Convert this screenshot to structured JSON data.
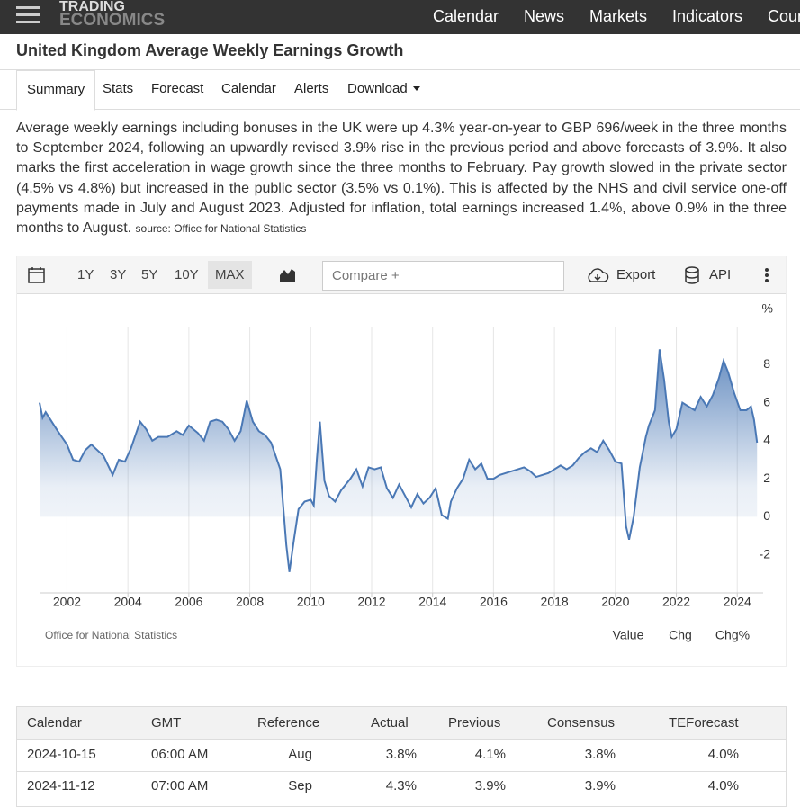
{
  "header": {
    "logo": [
      "TRADING",
      "ECONOMICS"
    ],
    "nav": [
      "Calendar",
      "News",
      "Markets",
      "Indicators",
      "Countries"
    ]
  },
  "title": "United Kingdom Average Weekly Earnings Growth",
  "tabs": [
    "Summary",
    "Stats",
    "Forecast",
    "Calendar",
    "Alerts",
    "Download"
  ],
  "summary": "Average weekly earnings including bonuses in the UK were up 4.3% year-on-year to GBP 696/week in the three months to September 2024, following an upwardly revised 3.9% rise in the previous period and above forecasts of 3.9%. It also marks the first acceleration in wage growth since the three months to February. Pay growth slowed in the private sector (4.5% vs 4.8%) but increased in the public sector (3.5% vs 0.1%). This is affected by the NHS and civil service one-off payments made in July and August 2023. Adjusted for inflation, total earnings increased 1.4%, above 0.9% in the three months to August.",
  "source": "source: Office for National Statistics",
  "toolbar": {
    "ranges": [
      "1Y",
      "3Y",
      "5Y",
      "10Y",
      "MAX"
    ],
    "compare": "Compare +",
    "export": "Export",
    "api": "API"
  },
  "chart_data": {
    "type": "area",
    "unit": "%",
    "color": "#4a78b5",
    "grid": true,
    "x": [
      2001.1,
      2001.2,
      2001.3,
      2001.5,
      2001.7,
      2002.0,
      2002.2,
      2002.4,
      2002.6,
      2002.8,
      2003.0,
      2003.2,
      2003.5,
      2003.7,
      2003.9,
      2004.1,
      2004.4,
      2004.6,
      2004.8,
      2005.0,
      2005.3,
      2005.6,
      2005.8,
      2006.0,
      2006.3,
      2006.5,
      2006.7,
      2006.9,
      2007.1,
      2007.3,
      2007.5,
      2007.7,
      2007.9,
      2008.1,
      2008.3,
      2008.5,
      2008.7,
      2009.0,
      2009.2,
      2009.3,
      2009.45,
      2009.6,
      2009.8,
      2010.0,
      2010.1,
      2010.2,
      2010.3,
      2010.45,
      2010.6,
      2010.8,
      2011.0,
      2011.3,
      2011.5,
      2011.7,
      2011.9,
      2012.1,
      2012.3,
      2012.5,
      2012.7,
      2012.9,
      2013.1,
      2013.3,
      2013.5,
      2013.7,
      2013.9,
      2014.1,
      2014.3,
      2014.5,
      2014.6,
      2014.8,
      2015.0,
      2015.2,
      2015.4,
      2015.6,
      2015.8,
      2016.0,
      2016.2,
      2016.4,
      2016.6,
      2016.8,
      2017.0,
      2017.2,
      2017.4,
      2017.6,
      2017.8,
      2018.0,
      2018.2,
      2018.4,
      2018.6,
      2018.8,
      2019.0,
      2019.2,
      2019.4,
      2019.6,
      2019.8,
      2020.0,
      2020.2,
      2020.35,
      2020.45,
      2020.6,
      2020.8,
      2021.0,
      2021.1,
      2021.3,
      2021.45,
      2021.6,
      2021.75,
      2021.85,
      2022.0,
      2022.2,
      2022.4,
      2022.6,
      2022.8,
      2023.0,
      2023.2,
      2023.4,
      2023.55,
      2023.7,
      2023.9,
      2024.1,
      2024.3,
      2024.45,
      2024.55,
      2024.65
    ],
    "values": [
      6.0,
      5.2,
      5.5,
      5.0,
      4.5,
      3.8,
      3.0,
      2.9,
      3.5,
      3.8,
      3.5,
      3.2,
      2.2,
      3.0,
      2.9,
      3.6,
      5.0,
      4.6,
      4.0,
      4.2,
      4.2,
      4.5,
      4.3,
      4.8,
      4.4,
      4.0,
      5.0,
      5.1,
      5.0,
      4.6,
      4.0,
      4.5,
      6.1,
      5.0,
      4.5,
      4.3,
      3.9,
      2.5,
      -1.5,
      -2.9,
      -1.2,
      0.4,
      0.8,
      0.9,
      0.6,
      3.0,
      5.0,
      1.9,
      1.1,
      0.8,
      1.4,
      2.0,
      2.5,
      1.6,
      2.6,
      2.5,
      2.6,
      1.5,
      1.0,
      1.7,
      1.1,
      0.5,
      1.2,
      0.7,
      1.0,
      1.5,
      0.1,
      -0.1,
      0.8,
      1.5,
      2.0,
      3.0,
      2.5,
      2.8,
      2.0,
      2.0,
      2.2,
      2.3,
      2.4,
      2.5,
      2.6,
      2.4,
      2.1,
      2.2,
      2.3,
      2.5,
      2.7,
      2.5,
      2.7,
      3.1,
      3.4,
      3.6,
      3.4,
      4.0,
      3.5,
      2.9,
      2.8,
      -0.5,
      -1.2,
      0.0,
      2.6,
      4.2,
      4.8,
      5.6,
      8.8,
      7.2,
      5.0,
      4.2,
      4.6,
      6.0,
      5.8,
      5.6,
      6.3,
      5.8,
      6.4,
      7.3,
      8.2,
      7.6,
      6.5,
      5.6,
      5.6,
      5.8,
      5.1,
      3.9
    ],
    "xlim": [
      2001.1,
      2024.85
    ],
    "xticks": [
      2002,
      2004,
      2006,
      2008,
      2010,
      2012,
      2014,
      2016,
      2018,
      2020,
      2022,
      2024
    ],
    "ylim": [
      -4,
      10
    ],
    "yticks": [
      -2,
      0,
      2,
      4,
      6,
      8
    ],
    "source": "Office for National Statistics",
    "views": [
      "Value",
      "Chg",
      "Chg%"
    ]
  },
  "table": {
    "columns": [
      "Calendar",
      "GMT",
      "Reference",
      "Actual",
      "Previous",
      "Consensus",
      "TEForecast"
    ],
    "rows": [
      [
        "2024-10-15",
        "06:00 AM",
        "Aug",
        "3.8%",
        "4.1%",
        "3.8%",
        "4.0%"
      ],
      [
        "2024-11-12",
        "07:00 AM",
        "Sep",
        "4.3%",
        "3.9%",
        "3.9%",
        "4.0%"
      ]
    ]
  }
}
